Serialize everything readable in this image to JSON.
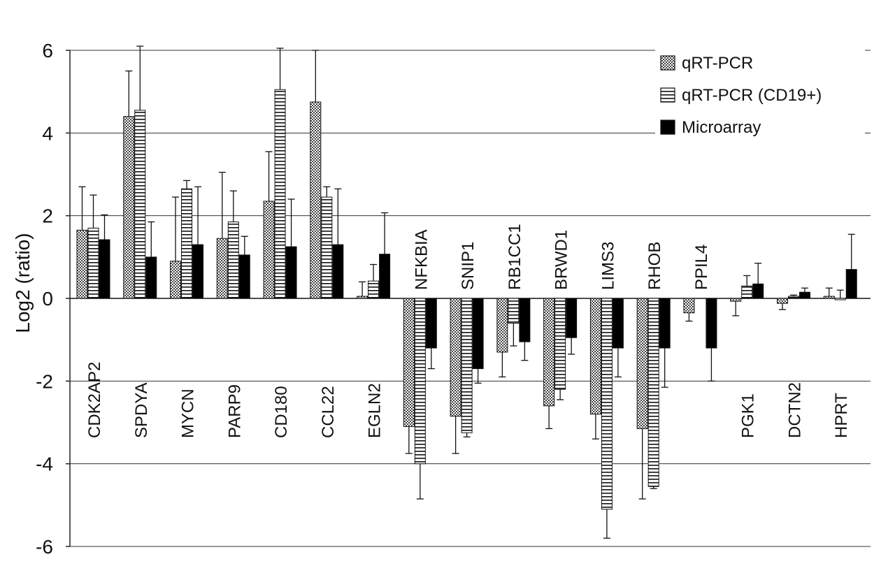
{
  "chart_data": {
    "type": "bar",
    "title": "",
    "xlabel": "",
    "ylabel": "Log2 (ratio)",
    "ylim": [
      -6,
      6
    ],
    "yticks": [
      6,
      4,
      2,
      0,
      -2,
      -4,
      -6
    ],
    "grid": "horizontal",
    "legend_position": "top-right",
    "categories": [
      "CDK2AP2",
      "SPDYA",
      "MYCN",
      "PARP9",
      "CD180",
      "CCL22",
      "EGLN2",
      "NFKBIA",
      "SNIP1",
      "RB1CC1",
      "BRWD1",
      "LIMS3",
      "RHOB",
      "PPIL4",
      "PGK1",
      "DCTN2",
      "HPRT"
    ],
    "series": [
      {
        "name": "qRT-PCR",
        "pattern": "dots",
        "values": [
          1.65,
          4.4,
          0.9,
          1.45,
          2.35,
          4.75,
          0.05,
          -3.1,
          -2.85,
          -1.3,
          -2.6,
          -2.8,
          -3.15,
          -0.35,
          -0.07,
          -0.12,
          0.05
        ],
        "errors": [
          1.05,
          1.1,
          1.55,
          1.6,
          1.2,
          1.25,
          0.35,
          0.65,
          0.9,
          0.6,
          0.55,
          0.6,
          1.7,
          0.2,
          0.35,
          0.15,
          0.2
        ]
      },
      {
        "name": "qRT-PCR (CD19+)",
        "pattern": "hlines",
        "values": [
          1.7,
          4.55,
          2.65,
          1.85,
          5.05,
          2.45,
          0.42,
          -4.0,
          -3.25,
          -0.6,
          -2.2,
          -5.1,
          -4.55,
          null,
          0.3,
          0.05,
          0.0
        ],
        "errors": [
          0.8,
          1.55,
          0.2,
          0.75,
          1.0,
          0.25,
          0.4,
          0.85,
          0.1,
          0.55,
          0.25,
          0.7,
          0.05,
          null,
          0.25,
          0.03,
          0.2
        ]
      },
      {
        "name": "Microarray",
        "pattern": "solid",
        "values": [
          1.42,
          1.0,
          1.3,
          1.05,
          1.25,
          1.3,
          1.07,
          -1.2,
          -1.7,
          -1.05,
          -0.95,
          -1.2,
          -1.2,
          -1.2,
          0.35,
          0.15,
          0.7
        ],
        "errors": [
          0.6,
          0.85,
          1.4,
          0.45,
          1.15,
          1.35,
          1.0,
          0.5,
          0.35,
          0.45,
          0.4,
          0.7,
          0.95,
          0.8,
          0.5,
          0.1,
          0.85
        ]
      }
    ]
  }
}
